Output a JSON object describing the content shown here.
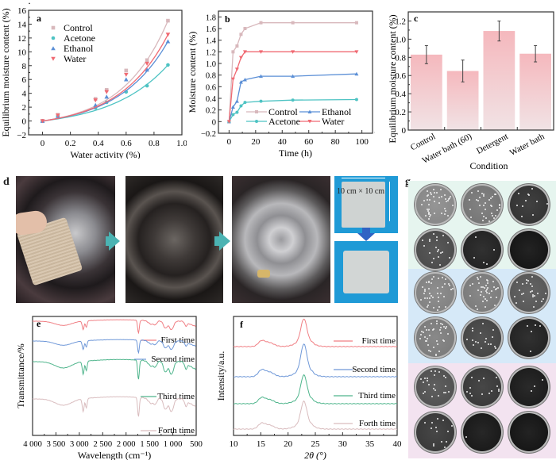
{
  "panels": {
    "a": {
      "label": "a",
      "chart_data": {
        "type": "scatter",
        "title": "",
        "xlabel": "Water activity (%)",
        "ylabel": "Equilibrium moisture content (%)",
        "xlim": [
          -0.1,
          1.0
        ],
        "ylim": [
          -2,
          16
        ],
        "xticks": [
          "0",
          "0.2",
          "0.4",
          "0.6",
          "0.8",
          "1.0"
        ],
        "yticks": [
          "-2",
          "0",
          "2",
          "4",
          "6",
          "8",
          "10",
          "12",
          "14",
          "16"
        ],
        "legend_position": "top-left",
        "series": [
          {
            "name": "Control",
            "color": "#d8b8bc",
            "marker": "square",
            "x": [
              0,
              0.11,
              0.38,
              0.46,
              0.6,
              0.75,
              0.9
            ],
            "y": [
              0,
              0.9,
              3.2,
              4.5,
              7.3,
              8.8,
              14.5
            ]
          },
          {
            "name": "Acetone",
            "color": "#4ec3c3",
            "marker": "circle",
            "x": [
              0,
              0.11,
              0.38,
              0.46,
              0.6,
              0.75,
              0.9
            ],
            "y": [
              0,
              0.7,
              1.9,
              2.7,
              4.2,
              5.1,
              8.1
            ]
          },
          {
            "name": "Ethanol",
            "color": "#5b8fd6",
            "marker": "triangle-up",
            "x": [
              0,
              0.11,
              0.38,
              0.46,
              0.6,
              0.75,
              0.9
            ],
            "y": [
              0,
              0.7,
              2.3,
              3.5,
              6.0,
              7.4,
              11.5
            ]
          },
          {
            "name": "Water",
            "color": "#f06a73",
            "marker": "triangle-down",
            "x": [
              0,
              0.11,
              0.38,
              0.46,
              0.6,
              0.75,
              0.9
            ],
            "y": [
              0,
              0.8,
              3.0,
              4.2,
              6.7,
              8.3,
              12.5
            ]
          }
        ]
      }
    },
    "b": {
      "label": "b",
      "chart_data": {
        "type": "line",
        "title": "",
        "xlabel": "Time (h)",
        "ylabel": "Moisture content (%)",
        "xlim": [
          -8,
          108
        ],
        "ylim": [
          -0.2,
          1.9
        ],
        "xticks": [
          "0",
          "20",
          "40",
          "60",
          "80",
          "100"
        ],
        "yticks": [
          "-0.2",
          "0",
          "0.2",
          "0.4",
          "0.6",
          "0.8",
          "1.0",
          "1.2",
          "1.4",
          "1.6",
          "1.8"
        ],
        "legend_position": "bottom-right",
        "x": [
          0,
          3,
          6,
          9,
          12,
          24,
          48,
          96
        ],
        "series": [
          {
            "name": "Control",
            "color": "#d8b8bc",
            "marker": "square",
            "values": [
              0,
              1.2,
              1.3,
              1.5,
              1.6,
              1.7,
              1.7,
              1.7
            ]
          },
          {
            "name": "Ethanol",
            "color": "#5b8fd6",
            "marker": "triangle-up",
            "values": [
              0,
              0.25,
              0.35,
              0.68,
              0.72,
              0.78,
              0.78,
              0.82
            ]
          },
          {
            "name": "Acetone",
            "color": "#4ec3c3",
            "marker": "circle",
            "values": [
              0,
              0.12,
              0.16,
              0.27,
              0.33,
              0.35,
              0.37,
              0.38
            ]
          },
          {
            "name": "Water",
            "color": "#f06a73",
            "marker": "triangle-down",
            "values": [
              0,
              0.73,
              0.9,
              1.1,
              1.2,
              1.2,
              1.2,
              1.2
            ]
          }
        ]
      }
    },
    "c": {
      "label": "c",
      "chart_data": {
        "type": "bar",
        "title": "",
        "xlabel": "Condition",
        "ylabel": "Equilibrium moisture content (%)",
        "ylim": [
          0,
          1.3
        ],
        "yticks": [
          "0",
          "0.2",
          "0.4",
          "0.6",
          "0.8",
          "1.0",
          "1.2"
        ],
        "categories": [
          "Control",
          "Water bath (60)",
          "Detergent",
          "Water bath"
        ],
        "values": [
          0.83,
          0.65,
          1.09,
          0.84
        ],
        "errors": [
          0.1,
          0.12,
          0.11,
          0.09
        ],
        "bar_color": "#f5b8bd"
      }
    },
    "d": {
      "label": "d",
      "dimension_label": "10 cm × 10 cm"
    },
    "e": {
      "label": "e",
      "chart_data": {
        "type": "line",
        "title": "",
        "xlabel": "Wavelength (cm⁻¹)",
        "ylabel": "Transmittance/%",
        "xlim": [
          4000,
          500
        ],
        "xticks": [
          "4 000",
          "3 500",
          "3 000",
          "2 500",
          "2 000",
          "1 500",
          "1 000",
          "500"
        ],
        "series": [
          {
            "name": "First time",
            "color": "#f07f84"
          },
          {
            "name": "Second time",
            "color": "#6f98d8"
          },
          {
            "name": "Third time",
            "color": "#4fb58c"
          },
          {
            "name": "Forth time",
            "color": "#d9bcbe"
          }
        ],
        "peaks_cm": [
          3340,
          2918,
          2850,
          1735,
          1650,
          1460,
          1160,
          1030,
          720
        ]
      }
    },
    "f": {
      "label": "f",
      "chart_data": {
        "type": "line",
        "title": "",
        "xlabel": "2θ (°)",
        "ylabel": "Intensity/a.u.",
        "xlim": [
          10,
          40
        ],
        "xticks": [
          "10",
          "15",
          "20",
          "25",
          "30",
          "35",
          "40"
        ],
        "series": [
          {
            "name": "First time",
            "color": "#f07f84"
          },
          {
            "name": "Second time",
            "color": "#6f98d8"
          },
          {
            "name": "Third time",
            "color": "#4fb58c"
          },
          {
            "name": "Forth time",
            "color": "#d9bcbe"
          }
        ],
        "peaks_deg": [
          15.0,
          16.5,
          22.8,
          34.5
        ]
      }
    },
    "g": {
      "label": "g",
      "group_colors": [
        "#e6f5ef",
        "#d6e9f8",
        "#f3e3f0"
      ],
      "plates_density": [
        [
          0.95,
          0.8,
          0.25
        ],
        [
          0.45,
          0.12,
          0.0
        ],
        [
          0.9,
          0.85,
          0.55
        ],
        [
          0.85,
          0.4,
          0.12
        ],
        [
          0.5,
          0.3,
          0.06
        ],
        [
          0.3,
          0.03,
          0.0
        ]
      ]
    }
  }
}
